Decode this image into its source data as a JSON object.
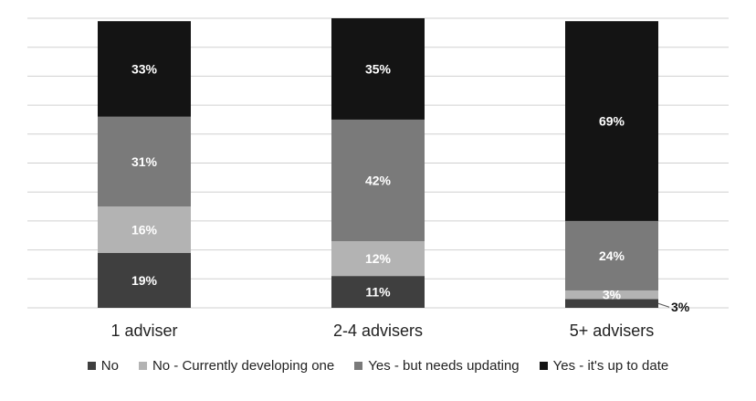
{
  "chart_data": {
    "type": "bar",
    "stacked": true,
    "categories": [
      "1 adviser",
      "2-4 advisers",
      "5+ advisers"
    ],
    "series": [
      {
        "name": "No",
        "values": [
          19,
          11,
          3
        ],
        "labels": [
          "19%",
          "11%",
          "3%"
        ],
        "color": "#3f3f3f"
      },
      {
        "name": "No - Currently developing one",
        "values": [
          16,
          12,
          3
        ],
        "labels": [
          "16%",
          "12%",
          "3%"
        ],
        "color": "#b3b3b3"
      },
      {
        "name": "Yes - but needs updating",
        "values": [
          31,
          42,
          24
        ],
        "labels": [
          "31%",
          "42%",
          "24%"
        ],
        "color": "#7a7a7a"
      },
      {
        "name": "Yes - it's up to date",
        "values": [
          33,
          35,
          69
        ],
        "labels": [
          "33%",
          "35%",
          "69%"
        ],
        "color": "#141414"
      }
    ],
    "ylim": [
      0,
      100
    ],
    "grid": true,
    "legend_position": "bottom"
  }
}
